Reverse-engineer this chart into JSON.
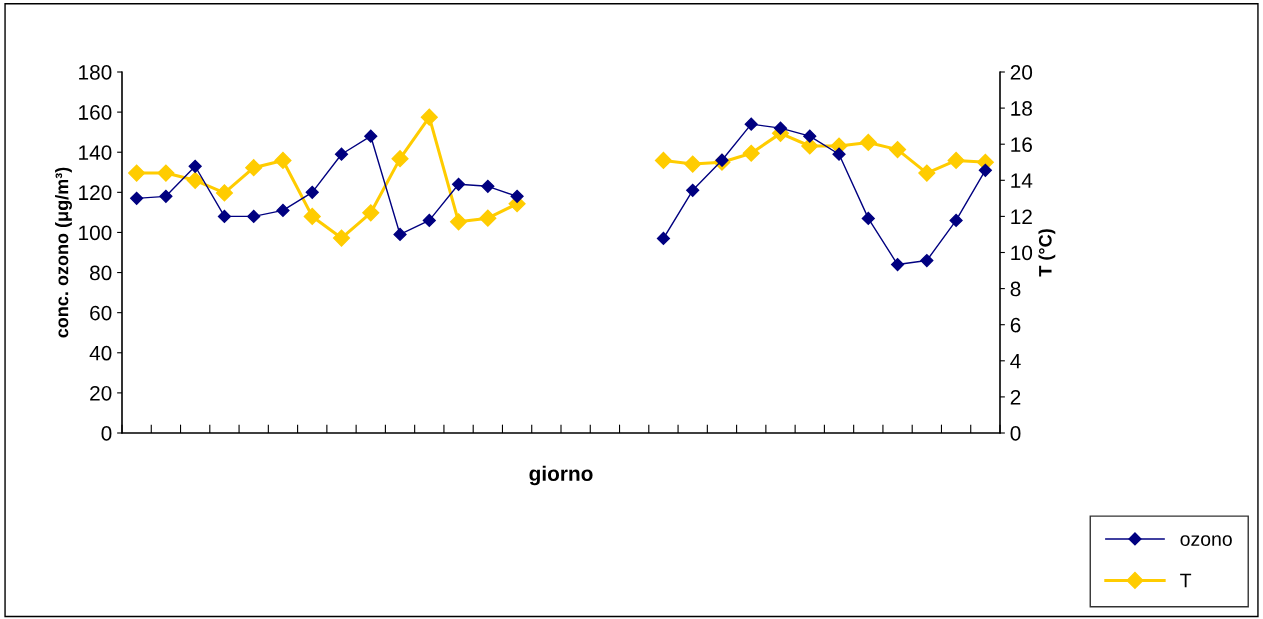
{
  "chart_data": {
    "type": "line",
    "xlabel": "giorno",
    "ylabel": "conc. ozono (μg/m³)",
    "y2label": "T (°C)",
    "categories": [
      null,
      null,
      null,
      null,
      null,
      null,
      null,
      null,
      null,
      null,
      null,
      null,
      null,
      null,
      null,
      null,
      null,
      null,
      null,
      null,
      null,
      null,
      null,
      null,
      null,
      null,
      null,
      null,
      null,
      null
    ],
    "series": [
      {
        "name": "ozono",
        "color": "#000080",
        "values": [
          117,
          118,
          133,
          108,
          108,
          111,
          120,
          139,
          148,
          99,
          106,
          124,
          123,
          118,
          null,
          null,
          null,
          null,
          97,
          121,
          136,
          154,
          152,
          148,
          139,
          107,
          84,
          86,
          106,
          131
        ]
      },
      {
        "name": "T",
        "color": "#ffcc00",
        "axis": "y2",
        "values": [
          14.4,
          14.4,
          14.0,
          13.3,
          14.7,
          15.1,
          12.0,
          10.8,
          12.2,
          15.2,
          17.5,
          11.7,
          11.9,
          12.7,
          null,
          null,
          null,
          null,
          15.1,
          14.9,
          15.0,
          15.5,
          16.6,
          15.9,
          15.9,
          16.1,
          15.7,
          14.4,
          15.1,
          15.0
        ]
      }
    ],
    "ylim": [
      0,
      180
    ],
    "yticks": [
      0,
      20,
      40,
      60,
      80,
      100,
      120,
      140,
      160,
      180
    ],
    "y2lim": [
      0,
      20
    ],
    "y2ticks": [
      0,
      2,
      4,
      6,
      8,
      10,
      12,
      14,
      16,
      18,
      20
    ],
    "marker": "diamond",
    "grid": false,
    "legend": "bottom right",
    "tick_labels": "y"
  }
}
